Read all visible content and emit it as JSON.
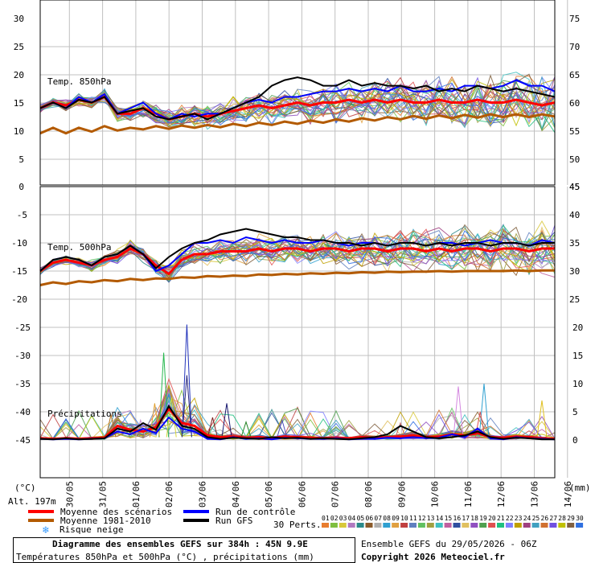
{
  "chart_data": {
    "type": "line",
    "title": "Diagramme des ensembles GEFS sur 384h : 45N 9.9E",
    "subtitle": "Températures 850hPa et 500hPa (°C) , précipitations (mm)",
    "unit_left": "(°C)",
    "unit_right": "(mm)",
    "altitude": "Alt. 197m",
    "x_tick_labels": [
      "30/05",
      "31/05",
      "01/06",
      "02/06",
      "03/06",
      "04/06",
      "05/06",
      "06/06",
      "07/06",
      "08/06",
      "09/06",
      "10/06",
      "11/06",
      "12/06",
      "13/06",
      "14/06"
    ],
    "panels": [
      {
        "name": "Temp. 850hPa",
        "left_ticks": [
          "30",
          "25",
          "20",
          "15",
          "10",
          "5",
          "0"
        ],
        "right_ticks": [
          "75",
          "70",
          "65",
          "60",
          "55",
          "50",
          "45"
        ],
        "ylim": [
          0,
          30
        ],
        "series": [
          {
            "name": "Moyenne des scénarios",
            "color": "#ff0000",
            "values": [
              14,
              15,
              14.5,
              15.5,
              15,
              16,
              13,
              13,
              14,
              13,
              12,
              12.5,
              13,
              12.5,
              13,
              13.5,
              14,
              14.5,
              14,
              14.5,
              15,
              14.5,
              15,
              15,
              15.5,
              15,
              15.5,
              15,
              15.5,
              15,
              15,
              15.5,
              15,
              15,
              15.5,
              15,
              15,
              15.5,
              15,
              14.5,
              15
            ]
          },
          {
            "name": "Run de contrôle",
            "color": "#0000ff",
            "values": [
              14,
              15,
              14,
              16,
              15,
              16.5,
              13,
              14,
              15,
              13,
              12,
              13,
              12.5,
              13,
              13,
              14,
              15,
              15.5,
              15,
              16,
              16,
              16.5,
              17,
              17,
              17.5,
              17,
              17.5,
              17,
              18,
              17,
              17,
              17.5,
              17,
              18,
              18,
              17.5,
              18,
              19,
              18,
              18,
              17
            ]
          },
          {
            "name": "Run GFS",
            "color": "#000000",
            "values": [
              14,
              15,
              14,
              15.5,
              15,
              16,
              13,
              13.5,
              14,
              12.5,
              12,
              12.5,
              13,
              12,
              13,
              14,
              15,
              16,
              18,
              19,
              19.5,
              19,
              18,
              18,
              19,
              18,
              18.5,
              18,
              18,
              17.5,
              18,
              17,
              17.5,
              17,
              18,
              17.5,
              17,
              17.5,
              17,
              16.5,
              16
            ]
          },
          {
            "name": "Moyenne 1981-2010",
            "color": "#b35a00",
            "values": [
              9.5,
              10.5,
              9.5,
              10.5,
              9.8,
              10.8,
              10,
              10.5,
              10.2,
              10.8,
              10.3,
              10.9,
              10.5,
              11,
              10.6,
              11.2,
              10.8,
              11.4,
              11,
              11.6,
              11.2,
              11.8,
              11.4,
              12,
              11.6,
              12.2,
              11.8,
              12.4,
              12,
              12.6,
              12.1,
              12.7,
              12.2,
              12.8,
              12.3,
              12.9,
              12.4,
              12.9,
              12.4,
              12.9,
              12.5
            ]
          }
        ]
      },
      {
        "name": "Temp. 500hPa",
        "left_ticks": [
          "-5",
          "-10",
          "-15",
          "-20"
        ],
        "right_ticks": [
          "40",
          "35",
          "30",
          "25"
        ],
        "ylim": [
          -22,
          -2
        ],
        "series": [
          {
            "name": "Moyenne des scénarios",
            "color": "#ff0000",
            "values": [
              -15,
              -13.5,
              -13,
              -13.5,
              -14,
              -13,
              -12.5,
              -11,
              -12,
              -14,
              -15.5,
              -13,
              -12,
              -12,
              -11.5,
              -11.5,
              -11.5,
              -11,
              -11.5,
              -11,
              -11,
              -11.5,
              -11,
              -11,
              -11.5,
              -11,
              -11,
              -11.5,
              -11,
              -11,
              -11.5,
              -11,
              -11.5,
              -11,
              -11,
              -11.5,
              -11,
              -11,
              -11.5,
              -11,
              -11
            ]
          },
          {
            "name": "Run de contrôle",
            "color": "#0000ff",
            "values": [
              -15,
              -13,
              -12.5,
              -13,
              -14,
              -12.5,
              -12,
              -10.5,
              -12,
              -15,
              -14,
              -12,
              -10,
              -10,
              -9.5,
              -10,
              -9,
              -9.5,
              -10,
              -9.5,
              -10,
              -10,
              -9.5,
              -10,
              -10.5,
              -10,
              -10,
              -10.5,
              -10,
              -10,
              -10.5,
              -10,
              -10,
              -10.5,
              -10,
              -9.5,
              -10,
              -10,
              -10.5,
              -9.5,
              -10
            ]
          },
          {
            "name": "Run GFS",
            "color": "#000000",
            "values": [
              -15,
              -13,
              -12.5,
              -13,
              -14,
              -12.5,
              -12,
              -10.5,
              -12,
              -14.5,
              -12.5,
              -11,
              -10,
              -9.5,
              -8.5,
              -8,
              -7.5,
              -8,
              -8.5,
              -9,
              -9,
              -9.5,
              -9.5,
              -10,
              -10,
              -10.5,
              -10,
              -10.5,
              -10,
              -10,
              -10.5,
              -10,
              -10.5,
              -10,
              -10,
              -10.5,
              -10,
              -10,
              -10.5,
              -10,
              -10
            ]
          },
          {
            "name": "Moyenne 1981-2010",
            "color": "#b35a00",
            "values": [
              -17.5,
              -17,
              -17.3,
              -16.8,
              -17,
              -16.6,
              -16.8,
              -16.4,
              -16.6,
              -16.3,
              -16.4,
              -16.1,
              -16.2,
              -15.9,
              -16,
              -15.8,
              -15.9,
              -15.6,
              -15.7,
              -15.5,
              -15.6,
              -15.4,
              -15.5,
              -15.3,
              -15.4,
              -15.2,
              -15.3,
              -15.1,
              -15.2,
              -15.1,
              -15.1,
              -15,
              -15.1,
              -15,
              -15,
              -15,
              -15,
              -14.9,
              -15,
              -14.9,
              -14.9
            ]
          }
        ]
      },
      {
        "name": "Précipitations",
        "left_ticks": [
          "-25",
          "-30",
          "-35",
          "-40",
          "-45"
        ],
        "right_ticks": [
          "20",
          "15",
          "10",
          "5",
          "0"
        ],
        "ylim": [
          0,
          20
        ],
        "series": [
          {
            "name": "Moyenne des scénarios",
            "color": "#ff0000",
            "values": [
              0.3,
              0.2,
              0.3,
              0.2,
              0.3,
              0.4,
              2.5,
              1.8,
              1.5,
              2.3,
              5.5,
              3,
              2.5,
              0.8,
              0.5,
              0.6,
              0.4,
              0.5,
              0.3,
              0.6,
              0.5,
              0.4,
              0.3,
              0.4,
              0.3,
              0.5,
              0.4,
              0.5,
              0.6,
              0.8,
              0.5,
              0.6,
              1,
              0.8,
              1.2,
              0.5,
              0.4,
              0.6,
              0.5,
              0.3,
              0.2
            ]
          },
          {
            "name": "Run de contrôle",
            "color": "#0000ff",
            "values": [
              0.2,
              0.1,
              0.2,
              0.1,
              0.2,
              0.3,
              1.5,
              1,
              2,
              1.2,
              4,
              2,
              1.5,
              0.2,
              0.1,
              0.5,
              0.2,
              0.3,
              0.1,
              0.4,
              0.3,
              0.2,
              0.2,
              0.3,
              0.1,
              0.2,
              0.2,
              0.4,
              0.3,
              0.5,
              0.3,
              0.4,
              1,
              0.5,
              2,
              0.3,
              0.1,
              0.5,
              0.3,
              0.2,
              0.1
            ]
          },
          {
            "name": "Run GFS",
            "color": "#000000",
            "values": [
              0.2,
              0.1,
              0.3,
              0.1,
              0.2,
              0.3,
              2,
              1.5,
              3,
              1.8,
              6,
              2.5,
              2,
              0.5,
              0.2,
              0.4,
              0.3,
              0.2,
              0.5,
              0.3,
              0.4,
              0.2,
              0.3,
              0.2,
              0.1,
              0.3,
              0.5,
              1,
              2.5,
              1.5,
              0.5,
              0.3,
              0.5,
              0.8,
              1.5,
              0.5,
              0.2,
              0.4,
              0.3,
              0.1,
              0.1
            ]
          }
        ]
      }
    ],
    "precip_spikes": [
      {
        "x": 9.6,
        "v": 15.5,
        "color": "#26b84e"
      },
      {
        "x": 10.2,
        "v": 7.5,
        "color": "#d6d63a"
      },
      {
        "x": 11.4,
        "v": 20.5,
        "color": "#2233bb"
      },
      {
        "x": 11.4,
        "v": 11.5,
        "color": "#2a2a80"
      },
      {
        "x": 8.9,
        "v": 6.5,
        "color": "#e0a030"
      },
      {
        "x": 14.5,
        "v": 6.5,
        "color": "#1a1a70"
      },
      {
        "x": 18.8,
        "v": 3.5,
        "color": "#5050c0"
      },
      {
        "x": 32.5,
        "v": 9.5,
        "color": "#d488e0"
      },
      {
        "x": 34.5,
        "v": 10,
        "color": "#2fa0d0"
      },
      {
        "x": 34.2,
        "v": 5,
        "color": "#e05050"
      },
      {
        "x": 39,
        "v": 7,
        "color": "#e0c020"
      },
      {
        "x": 5.5,
        "v": 4.5,
        "color": "#b07020"
      },
      {
        "x": 7.8,
        "v": 3.5,
        "color": "#c090d0"
      },
      {
        "x": 13.4,
        "v": 4,
        "color": "#7a2020"
      },
      {
        "x": 16,
        "v": 3.2,
        "color": "#208020"
      },
      {
        "x": 22.5,
        "v": 2.5,
        "color": "#80c080"
      },
      {
        "x": 28,
        "v": 3,
        "color": "#c06060"
      }
    ],
    "legend": {
      "items": [
        {
          "label": "Moyenne des scénarios",
          "color": "#ff0000"
        },
        {
          "label": "Moyenne 1981-2010",
          "color": "#b35a00"
        },
        {
          "label": "Run de contrôle",
          "color": "#0000ff"
        },
        {
          "label": "Run GFS",
          "color": "#000000"
        }
      ],
      "snow_label": "Risque neige",
      "perts_label": "30 Perts.",
      "perts": [
        "01",
        "02",
        "03",
        "04",
        "05",
        "06",
        "07",
        "08",
        "09",
        "10",
        "11",
        "12",
        "13",
        "14",
        "15",
        "16",
        "17",
        "18",
        "19",
        "20",
        "21",
        "22",
        "23",
        "24",
        "25",
        "26",
        "27",
        "28",
        "29",
        "30"
      ],
      "pert_colors": [
        "#e87d2f",
        "#7fbf3f",
        "#d8c83a",
        "#b07ac0",
        "#2a8a8a",
        "#8a5a2a",
        "#b0b0b0",
        "#30a0d0",
        "#e0a040",
        "#c04040",
        "#6080c0",
        "#60c060",
        "#a0a040",
        "#40c0c0",
        "#c060a0",
        "#3050a0",
        "#e0c060",
        "#9050c0",
        "#50a050",
        "#e05050",
        "#20c080",
        "#8080ff",
        "#c0a000",
        "#a04080",
        "#40a0c0",
        "#d07030",
        "#7050e0",
        "#c0c000",
        "#806040",
        "#3070e0"
      ]
    },
    "footer": {
      "title": "Diagramme des ensembles GEFS sur 384h : 45N 9.9E",
      "subtitle": "Températures 850hPa et 500hPa (°C) , précipitations (mm)",
      "run": "Ensemble GEFS du 29/05/2026 - 06Z",
      "copyright": "Copyright 2026 Meteociel.fr"
    }
  }
}
